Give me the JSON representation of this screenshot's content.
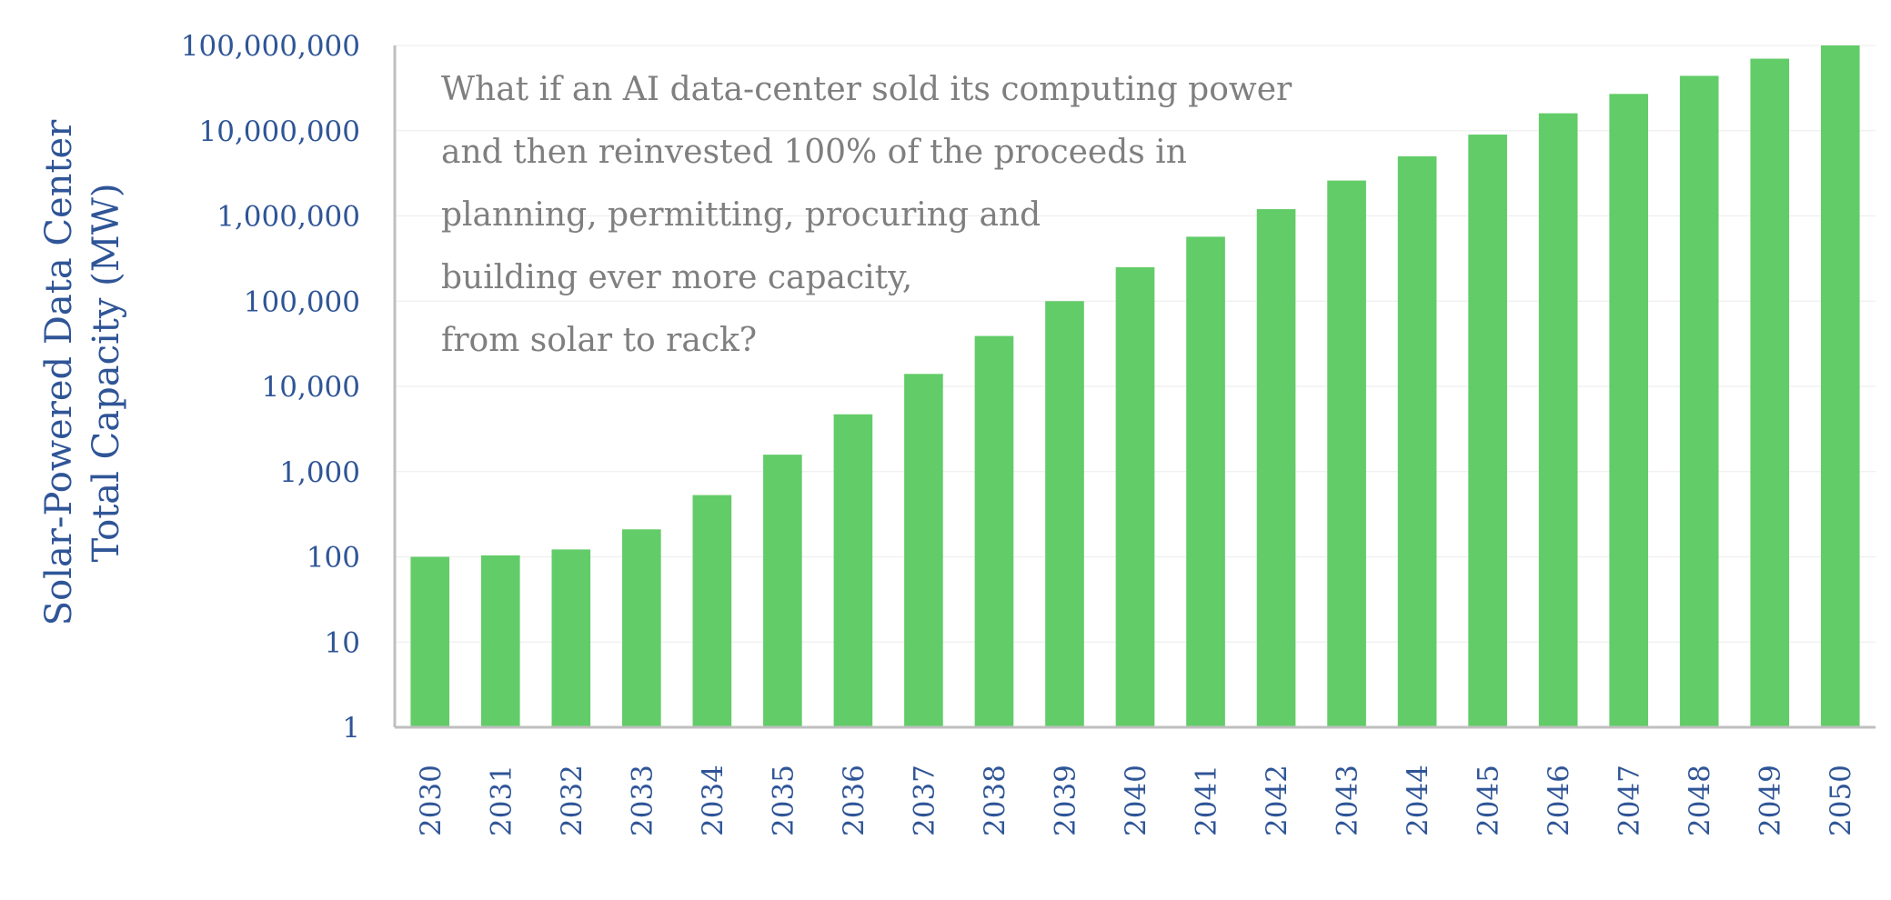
{
  "chart_data": {
    "type": "bar",
    "title": "",
    "xlabel": "",
    "ylabel": "Solar-Powered Data Center Total Capacity (MW)",
    "ylabel_lines": [
      "Solar-Powered Data Center",
      "Total Capacity (MW)"
    ],
    "yscale": "log",
    "ylim": [
      1,
      100000000
    ],
    "yticks": [
      1,
      10,
      100,
      1000,
      10000,
      100000,
      1000000,
      10000000,
      100000000
    ],
    "ytick_labels": [
      "1",
      "10",
      "100",
      "1,000",
      "10,000",
      "100,000",
      "1,000,000",
      "10,000,000",
      "100,000,000"
    ],
    "grid": true,
    "bar_color": "#62CC68",
    "text_color": "#2F5597",
    "annotation_color": "#7F7F7F",
    "categories": [
      "2030",
      "2031",
      "2032",
      "2033",
      "2034",
      "2035",
      "2036",
      "2037",
      "2038",
      "2039",
      "2040",
      "2041",
      "2042",
      "2043",
      "2044",
      "2045",
      "2046",
      "2047",
      "2048",
      "2049",
      "2050"
    ],
    "values": [
      100,
      104,
      122,
      210,
      530,
      1580,
      4700,
      14000,
      39000,
      100000,
      250000,
      570000,
      1200000,
      2600000,
      5000000,
      9000000,
      16000000,
      27000000,
      44000000,
      70000000,
      100000000
    ],
    "annotation": [
      "What if an AI data-center sold its computing power",
      "and then reinvested 100% of the proceeds in",
      "planning, permitting, procuring and",
      "building ever more capacity,",
      "from solar to rack?"
    ]
  }
}
